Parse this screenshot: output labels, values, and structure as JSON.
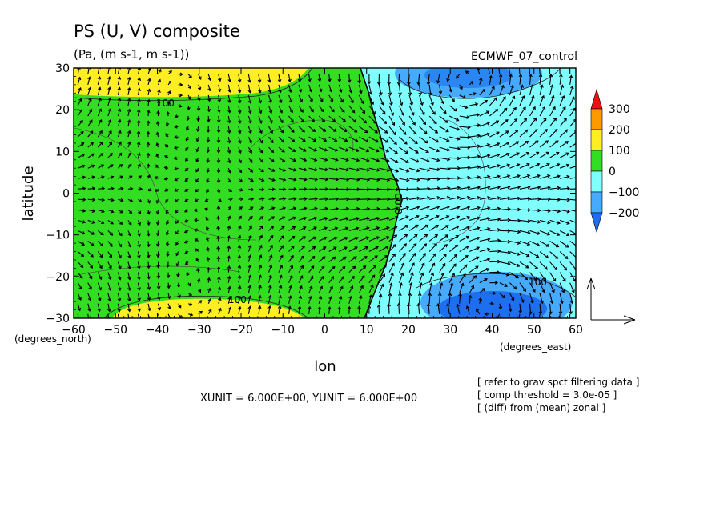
{
  "chart_data": {
    "type": "heatmap",
    "title": "PS (U, V) composite",
    "subtitle": "(Pa, (m s-1, m s-1))",
    "dataset": "ECMWF_07_control",
    "xlabel": "lon",
    "ylabel": "latitude",
    "x_unit_label": "(degrees_east)",
    "y_unit_label": "(degrees_north)",
    "xlim": [
      -60,
      60
    ],
    "ylim": [
      -30,
      30
    ],
    "x_ticks": [
      "−60",
      "−50",
      "−40",
      "−30",
      "−20",
      "−10",
      "0",
      "10",
      "20",
      "30",
      "40",
      "50",
      "60"
    ],
    "y_ticks": [
      "−30",
      "−20",
      "−10",
      "0",
      "10",
      "20",
      "30"
    ],
    "colorbar": {
      "labels": [
        "300",
        "200",
        "100",
        "0",
        "−100",
        "−200"
      ],
      "levels": [
        -300,
        -200,
        -100,
        0,
        100,
        200,
        300
      ],
      "colors": [
        "#1e6ef0",
        "#46aaff",
        "#80ffff",
        "#33dd22",
        "#ffee22",
        "#ff9900",
        "#ee1111"
      ]
    },
    "contour_labels": [
      "100",
      "100",
      "0.00",
      "100"
    ],
    "vector_scale_text": "XUNIT = 6.000E+00, YUNIT = 6.000E+00",
    "notes": [
      "[ refer to grav spct filtering data ]",
      "[ comp threshold = 3.0e-05 ]",
      "[ (diff) from (mean) zonal ]"
    ]
  }
}
